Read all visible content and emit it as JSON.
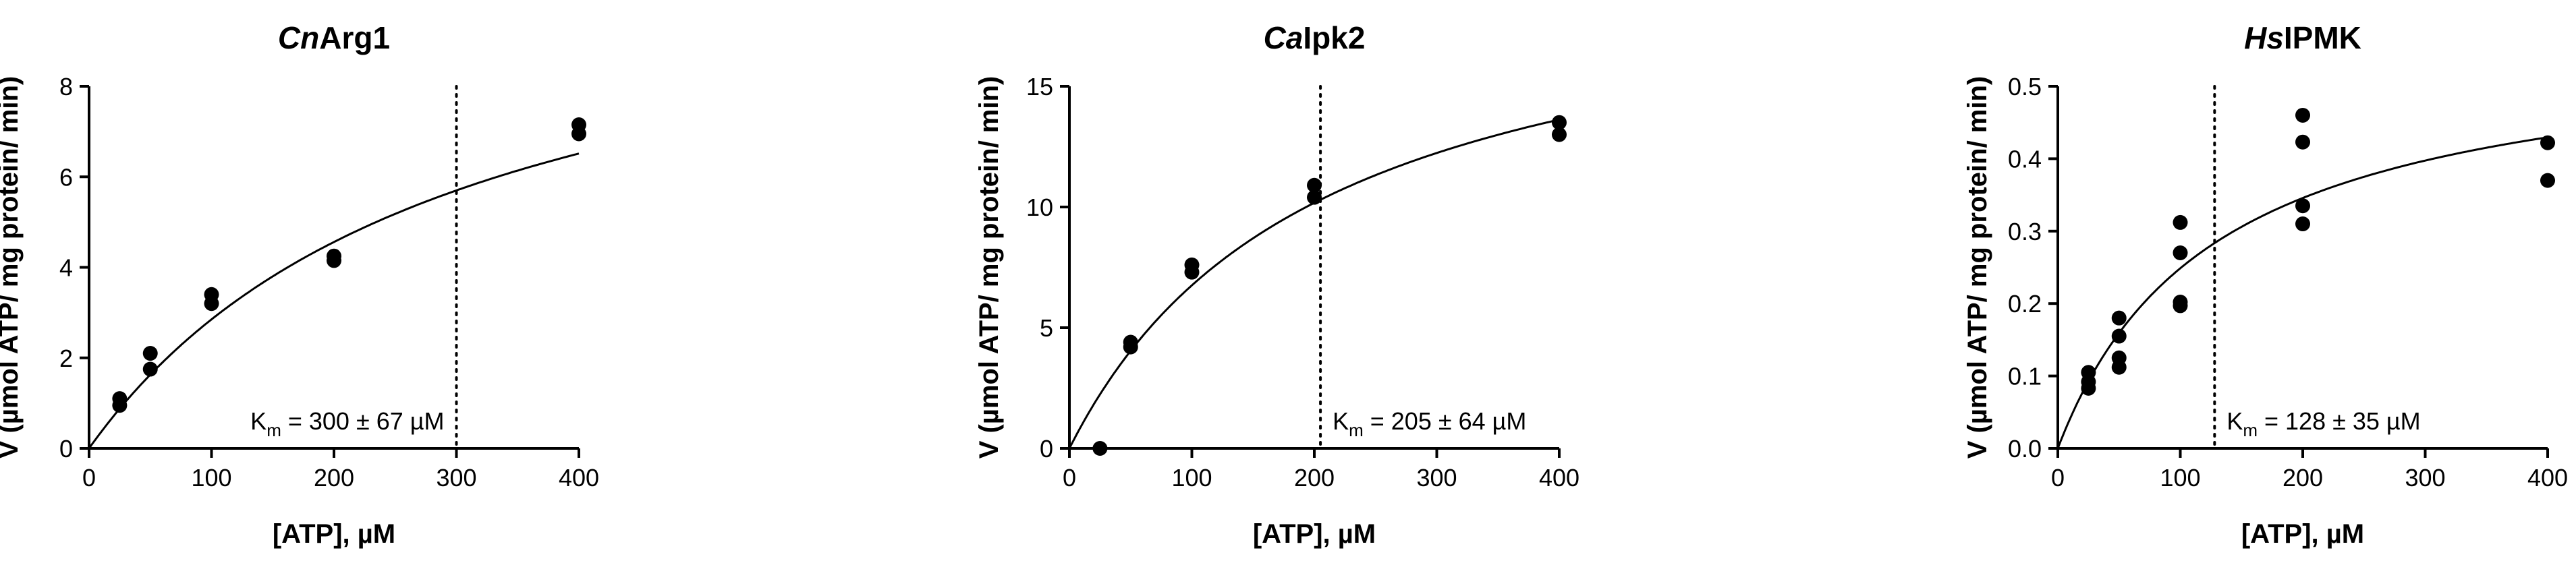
{
  "chart_data": [
    {
      "type": "scatter",
      "title_italic": "Cn",
      "title_rest": "Arg1",
      "xlabel": "[ATP], µM",
      "ylabel": "V (µmol ATP/ mg protein/ min)",
      "xlim": [
        0,
        400
      ],
      "ylim": [
        0,
        8
      ],
      "xticks": [
        0,
        100,
        200,
        300,
        400
      ],
      "yticks": [
        0,
        2,
        4,
        6,
        8
      ],
      "ytick_labels": [
        "0",
        "2",
        "4",
        "6",
        "8"
      ],
      "points": [
        {
          "x": 25,
          "y": 0.95
        },
        {
          "x": 25,
          "y": 1.1
        },
        {
          "x": 50,
          "y": 1.75
        },
        {
          "x": 50,
          "y": 2.1
        },
        {
          "x": 100,
          "y": 3.2
        },
        {
          "x": 100,
          "y": 3.4
        },
        {
          "x": 200,
          "y": 4.15
        },
        {
          "x": 200,
          "y": 4.25
        },
        {
          "x": 400,
          "y": 6.95
        },
        {
          "x": 400,
          "y": 7.15
        }
      ],
      "fit": {
        "model": "michaelis-menten",
        "vmax": 11.4,
        "km": 300
      },
      "km_line_x": 300,
      "km_text_prefix": "K",
      "km_text_sub": "m",
      "km_text_value": " = 300 ± 67 µM"
    },
    {
      "type": "scatter",
      "title_italic": "Ca",
      "title_rest": "Ipk2",
      "xlabel": "[ATP], µM",
      "ylabel": "V (µmol ATP/ mg protein/ min)",
      "xlim": [
        0,
        400
      ],
      "ylim": [
        0,
        15
      ],
      "xticks": [
        0,
        100,
        200,
        300,
        400
      ],
      "yticks": [
        0,
        5,
        10,
        15
      ],
      "ytick_labels": [
        "0",
        "5",
        "10",
        "15"
      ],
      "points": [
        {
          "x": 25,
          "y": 0.0
        },
        {
          "x": 50,
          "y": 4.2
        },
        {
          "x": 50,
          "y": 4.4
        },
        {
          "x": 100,
          "y": 7.3
        },
        {
          "x": 100,
          "y": 7.6
        },
        {
          "x": 200,
          "y": 10.4
        },
        {
          "x": 200,
          "y": 10.9
        },
        {
          "x": 400,
          "y": 13.0
        },
        {
          "x": 400,
          "y": 13.5
        }
      ],
      "fit": {
        "model": "michaelis-menten",
        "vmax": 20.6,
        "km": 205
      },
      "km_line_x": 205,
      "km_text_prefix": "K",
      "km_text_sub": "m",
      "km_text_value": " = 205 ± 64 µM"
    },
    {
      "type": "scatter",
      "title_italic": "Hs",
      "title_rest": "IPMK",
      "xlabel": "[ATP], µM",
      "ylabel": "V (µmol ATP/ mg protein/ min)",
      "xlim": [
        0,
        400
      ],
      "ylim": [
        0,
        0.5
      ],
      "xticks": [
        0,
        100,
        200,
        300,
        400
      ],
      "yticks": [
        0,
        0.1,
        0.2,
        0.3,
        0.4,
        0.5
      ],
      "ytick_labels": [
        "0.0",
        "0.1",
        "0.2",
        "0.3",
        "0.4",
        "0.5"
      ],
      "points": [
        {
          "x": 25,
          "y": 0.083
        },
        {
          "x": 25,
          "y": 0.092
        },
        {
          "x": 25,
          "y": 0.105
        },
        {
          "x": 50,
          "y": 0.112
        },
        {
          "x": 50,
          "y": 0.125
        },
        {
          "x": 50,
          "y": 0.155
        },
        {
          "x": 50,
          "y": 0.18
        },
        {
          "x": 100,
          "y": 0.197
        },
        {
          "x": 100,
          "y": 0.202
        },
        {
          "x": 100,
          "y": 0.27
        },
        {
          "x": 100,
          "y": 0.312
        },
        {
          "x": 200,
          "y": 0.31
        },
        {
          "x": 200,
          "y": 0.335
        },
        {
          "x": 200,
          "y": 0.423
        },
        {
          "x": 200,
          "y": 0.46
        },
        {
          "x": 400,
          "y": 0.37
        },
        {
          "x": 400,
          "y": 0.422
        }
      ],
      "fit": {
        "model": "michaelis-menten",
        "vmax": 0.567,
        "km": 128
      },
      "km_line_x": 128,
      "km_text_prefix": "K",
      "km_text_sub": "m",
      "km_text_value": " = 128 ± 35 µM"
    }
  ]
}
